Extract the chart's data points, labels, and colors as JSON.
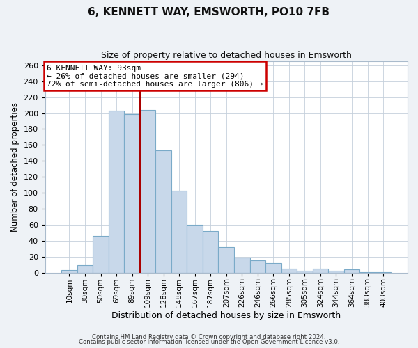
{
  "title": "6, KENNETT WAY, EMSWORTH, PO10 7FB",
  "subtitle": "Size of property relative to detached houses in Emsworth",
  "xlabel": "Distribution of detached houses by size in Emsworth",
  "ylabel": "Number of detached properties",
  "bar_labels": [
    "10sqm",
    "30sqm",
    "50sqm",
    "69sqm",
    "89sqm",
    "109sqm",
    "128sqm",
    "148sqm",
    "167sqm",
    "187sqm",
    "207sqm",
    "226sqm",
    "246sqm",
    "266sqm",
    "285sqm",
    "305sqm",
    "324sqm",
    "344sqm",
    "364sqm",
    "383sqm",
    "403sqm"
  ],
  "bar_values": [
    3,
    9,
    46,
    203,
    199,
    204,
    153,
    103,
    60,
    52,
    32,
    19,
    15,
    12,
    5,
    2,
    5,
    2,
    4,
    1,
    1
  ],
  "bar_color": "#c8d8ea",
  "bar_edge_color": "#7aaac8",
  "ylim": [
    0,
    265
  ],
  "yticks": [
    0,
    20,
    40,
    60,
    80,
    100,
    120,
    140,
    160,
    180,
    200,
    220,
    240,
    260
  ],
  "annotation_title": "6 KENNETT WAY: 93sqm",
  "annotation_line1": "← 26% of detached houses are smaller (294)",
  "annotation_line2": "72% of semi-detached houses are larger (806) →",
  "annotation_box_color": "#ffffff",
  "annotation_border_color": "#cc0000",
  "vline_color": "#aa0000",
  "vline_x": 4.5,
  "footer1": "Contains HM Land Registry data © Crown copyright and database right 2024.",
  "footer2": "Contains public sector information licensed under the Open Government Licence v3.0.",
  "bg_color": "#eef2f6",
  "plot_bg_color": "#ffffff",
  "grid_color": "#c5d0dc"
}
